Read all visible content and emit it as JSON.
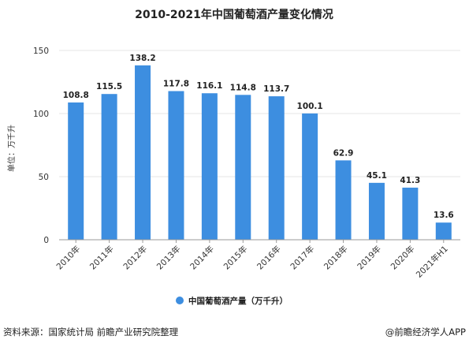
{
  "chart_data": {
    "type": "bar",
    "title": "2010-2021年中国葡萄酒产量变化情况",
    "ylabel": "单位：万千升",
    "xlabel": "",
    "categories": [
      "2010年",
      "2011年",
      "2012年",
      "2013年",
      "2014年",
      "2015年",
      "2016年",
      "2017年",
      "2018年",
      "2019年",
      "2020年",
      "2021年H1"
    ],
    "series": [
      {
        "name": "中国葡萄酒产量（万千升）",
        "values": [
          108.8,
          115.5,
          138.2,
          117.8,
          116.1,
          114.8,
          113.7,
          100.1,
          62.9,
          45.1,
          41.3,
          13.6
        ]
      }
    ],
    "value_labels": [
      "108.8",
      "115.5",
      "138.2",
      "117.8",
      "116.1",
      "114.8",
      "113.7",
      "100.1",
      "62.9",
      "45.1",
      "41.3",
      "13.6"
    ],
    "ylim": [
      0,
      150
    ],
    "yticks": [
      0,
      50,
      100,
      150
    ],
    "grid": true,
    "legend_position": "bottom",
    "bar_color": "#3d8ee0"
  },
  "footer": {
    "source": "资料来源：国家统计局 前瞻产业研究院整理",
    "brand": "@前瞻经济学人APP"
  }
}
